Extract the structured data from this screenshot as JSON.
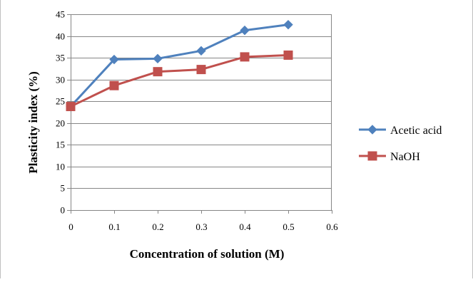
{
  "chart_data": {
    "type": "line",
    "title": "",
    "xlabel": "Concentration of solution (M)",
    "ylabel": "Plasticity index (%)",
    "x": [
      0,
      0.1,
      0.2,
      0.3,
      0.4,
      0.5
    ],
    "xlim": [
      0,
      0.6
    ],
    "ylim": [
      0,
      45
    ],
    "x_ticks": [
      "0",
      "0.1",
      "0.2",
      "0.3",
      "0.4",
      "0.5",
      "0.6"
    ],
    "y_ticks": [
      "0",
      "5",
      "10",
      "15",
      "20",
      "25",
      "30",
      "35",
      "40",
      "45"
    ],
    "grid": "horizontal",
    "legend_position": "right",
    "series": [
      {
        "name": "Acetic acid",
        "values": [
          23.8,
          34.6,
          34.8,
          36.6,
          41.3,
          42.6
        ],
        "color": "#4f81bd",
        "marker": "diamond"
      },
      {
        "name": "NaOH",
        "values": [
          23.8,
          28.6,
          31.8,
          32.3,
          35.2,
          35.6
        ],
        "color": "#c0504d",
        "marker": "square"
      }
    ]
  }
}
